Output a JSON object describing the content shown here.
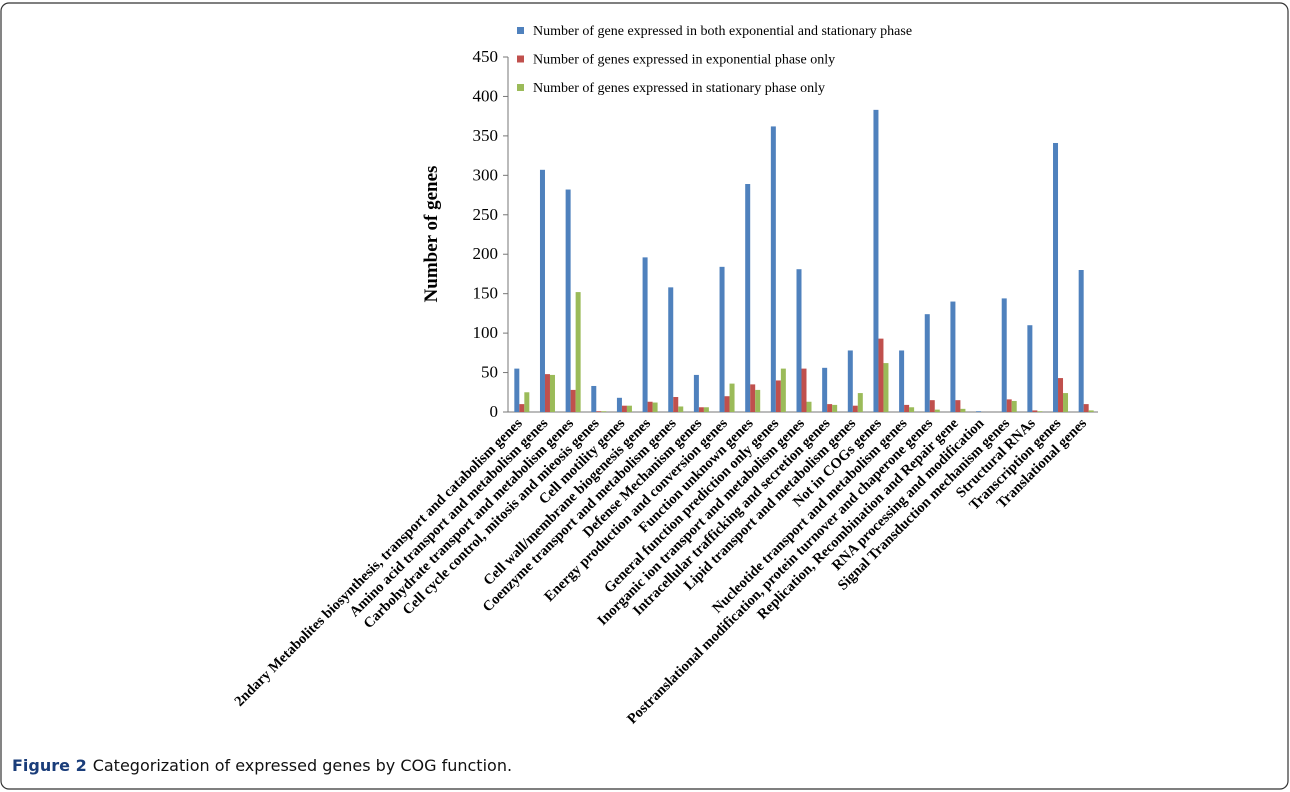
{
  "chart_data": {
    "type": "bar",
    "y_label": "Number of genes",
    "categories": [
      "2ndary Metabolites biosynthesis, transport and catabolism genes",
      "Amino acid transport and metabolism genes",
      "Carbohydrate transport and metabolism genes",
      "Cell cycle control, mitosis and mieosis genes",
      "Cell motility genes",
      "Cell wall/membrane biogenesis genes",
      "Coenzyme transport and metabolism genes",
      "Defense Mechanism genes",
      "Energy production and conversion genes",
      "Function unknown genes",
      "General function prediction only genes",
      "Inorganic ion transport and metabolism genes",
      "Intracellular trafficking and secretion genes",
      "Lipid transport and metabolism genes",
      "Not in COGs genes",
      "Nucleotide transport and metabolism genes",
      "Postranslational modification, protein turnover and chaperone genes",
      "Replication, Recombination and Repair gene",
      "RNA processing and modification",
      "Signal Transduction mechanism genes",
      "Structural RNAs",
      "Transcription genes",
      "Translational genes"
    ],
    "series": [
      {
        "name": "Number of gene expressed in both exponential and stationary phase",
        "color": "#4f81bd",
        "values": [
          55,
          307,
          282,
          33,
          18,
          196,
          158,
          47,
          184,
          289,
          362,
          181,
          56,
          78,
          383,
          78,
          124,
          140,
          1,
          144,
          110,
          341,
          180
        ]
      },
      {
        "name": "Number of genes expressed in exponential phase only",
        "color": "#c0504d",
        "values": [
          10,
          48,
          28,
          1,
          8,
          13,
          19,
          6,
          20,
          35,
          40,
          55,
          10,
          8,
          93,
          9,
          15,
          15,
          0,
          16,
          2,
          43,
          10
        ]
      },
      {
        "name": "Number of genes expressed in stationary phase only",
        "color": "#9bbb59",
        "values": [
          25,
          47,
          152,
          1,
          8,
          12,
          7,
          6,
          36,
          28,
          55,
          13,
          9,
          24,
          62,
          6,
          3,
          4,
          0,
          14,
          1,
          24,
          2
        ]
      }
    ],
    "ylim": [
      0,
      450
    ],
    "yticks": [
      0,
      50,
      100,
      150,
      200,
      250,
      300,
      350,
      400,
      450
    ]
  },
  "caption": {
    "label": "Figure 2",
    "text": "Categorization of expressed genes by COG function."
  }
}
